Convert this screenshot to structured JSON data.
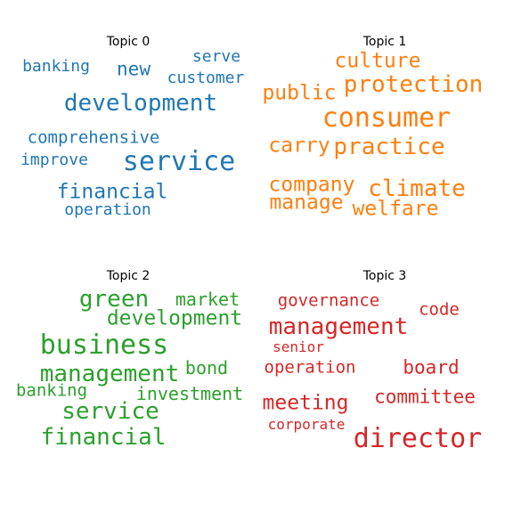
{
  "chart_data": [
    {
      "type": "wordcloud",
      "title": "Topic 0",
      "color": "#1f77b4",
      "words": [
        {
          "text": "service",
          "weight": 1.0
        },
        {
          "text": "development",
          "weight": 0.85
        },
        {
          "text": "financial",
          "weight": 0.75
        },
        {
          "text": "new",
          "weight": 0.6
        },
        {
          "text": "comprehensive",
          "weight": 0.55
        },
        {
          "text": "operation",
          "weight": 0.5
        },
        {
          "text": "banking",
          "weight": 0.5
        },
        {
          "text": "improve",
          "weight": 0.5
        },
        {
          "text": "customer",
          "weight": 0.5
        },
        {
          "text": "serve",
          "weight": 0.5
        }
      ]
    },
    {
      "type": "wordcloud",
      "title": "Topic 1",
      "color": "#ff7f0e",
      "words": [
        {
          "text": "consumer",
          "weight": 1.0
        },
        {
          "text": "protection",
          "weight": 0.85
        },
        {
          "text": "practice",
          "weight": 0.85
        },
        {
          "text": "climate",
          "weight": 0.85
        },
        {
          "text": "company",
          "weight": 0.75
        },
        {
          "text": "culture",
          "weight": 0.7
        },
        {
          "text": "welfare",
          "weight": 0.7
        },
        {
          "text": "public",
          "weight": 0.65
        },
        {
          "text": "carry",
          "weight": 0.65
        },
        {
          "text": "manage",
          "weight": 0.65
        }
      ]
    },
    {
      "type": "wordcloud",
      "title": "Topic 2",
      "color": "#2ca02c",
      "words": [
        {
          "text": "business",
          "weight": 1.0
        },
        {
          "text": "management",
          "weight": 0.85
        },
        {
          "text": "service",
          "weight": 0.85
        },
        {
          "text": "financial",
          "weight": 0.85
        },
        {
          "text": "green",
          "weight": 0.8
        },
        {
          "text": "development",
          "weight": 0.75
        },
        {
          "text": "market",
          "weight": 0.65
        },
        {
          "text": "bond",
          "weight": 0.65
        },
        {
          "text": "investment",
          "weight": 0.65
        },
        {
          "text": "banking",
          "weight": 0.6
        }
      ]
    },
    {
      "type": "wordcloud",
      "title": "Topic 3",
      "color": "#d62728",
      "words": [
        {
          "text": "director",
          "weight": 1.0
        },
        {
          "text": "management",
          "weight": 0.85
        },
        {
          "text": "meeting",
          "weight": 0.75
        },
        {
          "text": "board",
          "weight": 0.7
        },
        {
          "text": "committee",
          "weight": 0.7
        },
        {
          "text": "operation",
          "weight": 0.6
        },
        {
          "text": "governance",
          "weight": 0.6
        },
        {
          "text": "code",
          "weight": 0.6
        },
        {
          "text": "corporate",
          "weight": 0.55
        },
        {
          "text": "senior",
          "weight": 0.55
        }
      ]
    }
  ]
}
